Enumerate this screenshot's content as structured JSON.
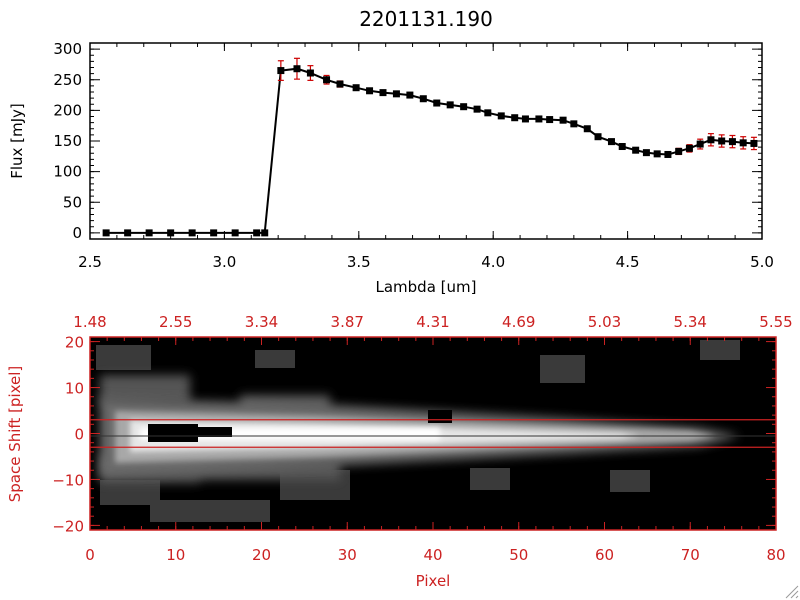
{
  "chart_data": [
    {
      "type": "line",
      "title": "2201131.190",
      "xlabel": "Lambda [um]",
      "ylabel": "Flux [mJy]",
      "xlim": [
        2.5,
        5.0
      ],
      "ylim": [
        -10,
        310
      ],
      "x_ticks": [
        2.5,
        3.0,
        3.5,
        4.0,
        4.5,
        5.0
      ],
      "x_tick_labels": [
        "2.5",
        "3.0",
        "3.5",
        "4.0",
        "4.5",
        "5.0"
      ],
      "y_ticks": [
        0,
        50,
        100,
        150,
        200,
        250,
        300
      ],
      "y_tick_labels": [
        "0",
        "50",
        "100",
        "150",
        "200",
        "250",
        "300"
      ],
      "grid": false,
      "colors": {
        "line": "#000000",
        "marker": "#000000",
        "error_bar": "#cc0000"
      },
      "series": [
        {
          "x": [
            2.56,
            2.64,
            2.72,
            2.8,
            2.88,
            2.96,
            3.04,
            3.12,
            3.15,
            3.21,
            3.27,
            3.32,
            3.38,
            3.43,
            3.49,
            3.54,
            3.59,
            3.64,
            3.69,
            3.74,
            3.79,
            3.84,
            3.89,
            3.94,
            3.98,
            4.03,
            4.08,
            4.12,
            4.17,
            4.21,
            4.26,
            4.3,
            4.35,
            4.39,
            4.44,
            4.48,
            4.53,
            4.57,
            4.61,
            4.65,
            4.69,
            4.73,
            4.77,
            4.81,
            4.85,
            4.89,
            4.93,
            4.97
          ],
          "y": [
            0,
            0,
            0,
            0,
            0,
            0,
            0,
            0,
            0,
            265,
            268,
            261,
            250,
            243,
            237,
            232,
            229,
            227,
            225,
            219,
            212,
            209,
            206,
            202,
            196,
            191,
            188,
            186,
            186,
            185,
            184,
            178,
            170,
            157,
            149,
            141,
            135,
            131,
            129,
            128,
            133,
            138,
            145,
            152,
            150,
            149,
            147,
            146
          ],
          "error": [
            0,
            0,
            0,
            0,
            0,
            0,
            0,
            0,
            0,
            16,
            17,
            12,
            7,
            5,
            4,
            3,
            3,
            3,
            3,
            3,
            3,
            3,
            3,
            3,
            3,
            3,
            3,
            3,
            3,
            3,
            3,
            3,
            3,
            3,
            3,
            3,
            3,
            3,
            3,
            3,
            5,
            6,
            8,
            10,
            10,
            10,
            10,
            10
          ],
          "marker": "square"
        }
      ]
    },
    {
      "type": "heatmap",
      "xlabel": "Pixel",
      "ylabel": "Space Shift [pixel]",
      "xlim": [
        0,
        80
      ],
      "ylim": [
        -21,
        21
      ],
      "x_ticks": [
        0,
        10,
        20,
        30,
        40,
        50,
        60,
        70,
        80
      ],
      "x_tick_labels": [
        "0",
        "10",
        "20",
        "30",
        "40",
        "50",
        "60",
        "70",
        "80"
      ],
      "y_ticks": [
        -20,
        -10,
        0,
        10,
        20
      ],
      "y_tick_labels": [
        "−20",
        "−10",
        "0",
        "10",
        "20"
      ],
      "top_axis_positions": [
        0,
        10,
        20,
        30,
        40,
        50,
        60,
        70,
        80
      ],
      "top_axis_labels": [
        "1.48",
        "2.55",
        "3.34",
        "3.87",
        "4.31",
        "4.69",
        "5.03",
        "5.34",
        "5.55"
      ],
      "extraction_lines_y": [
        3,
        -3
      ],
      "colors": {
        "axes": "#cc2222",
        "lines": "#cc2222",
        "colormap": "grayscale"
      }
    }
  ]
}
